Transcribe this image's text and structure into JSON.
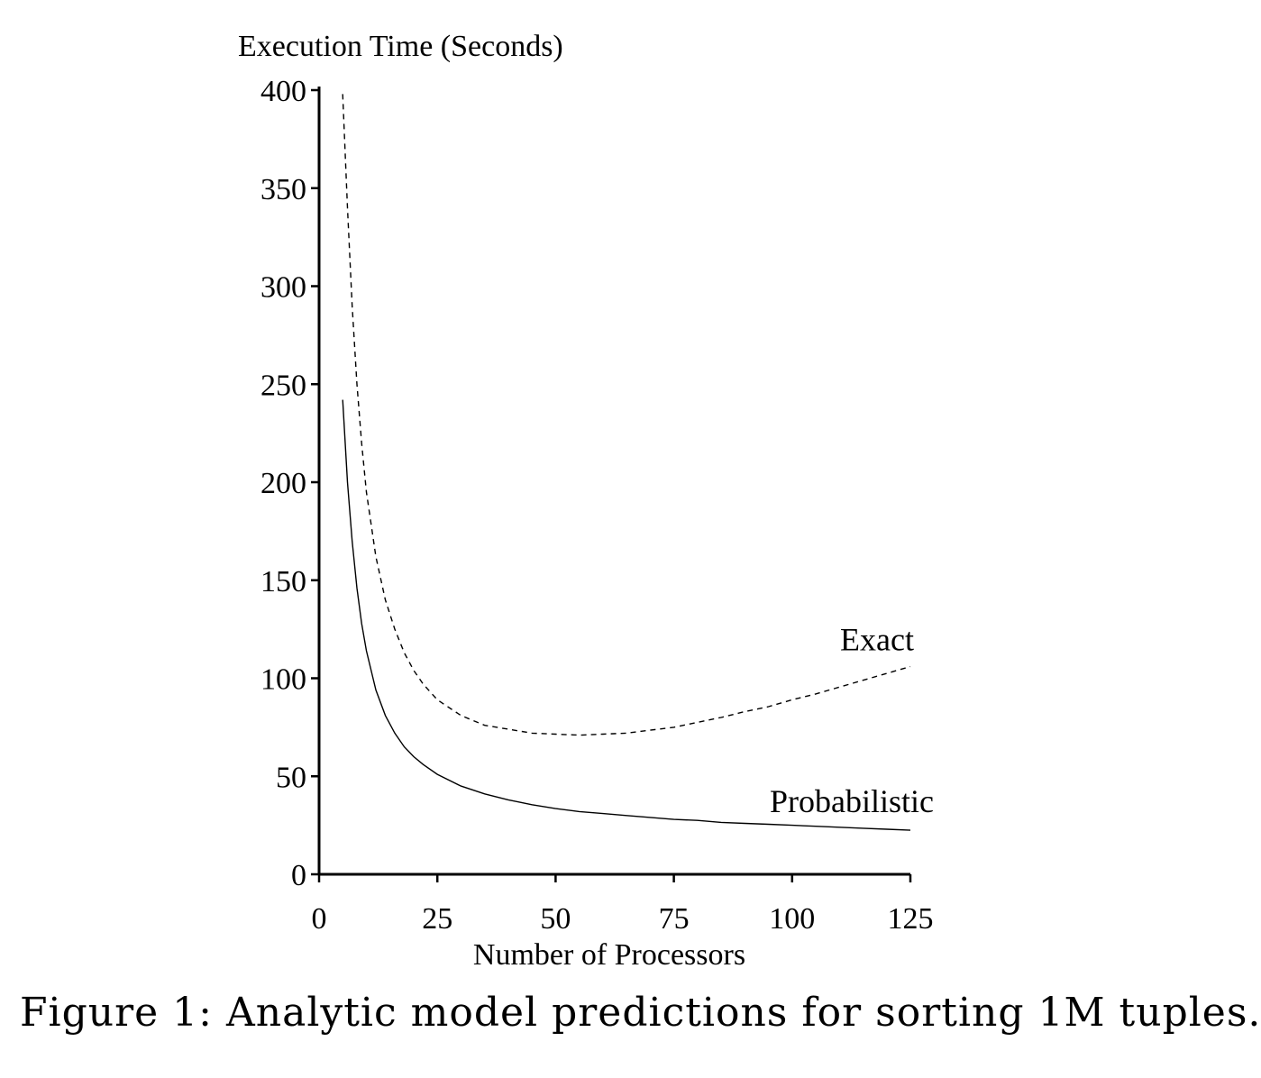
{
  "chart_data": {
    "type": "line",
    "title": "",
    "ylabel": "Execution Time (Seconds)",
    "xlabel": "Number of Processors",
    "xlim": [
      0,
      125
    ],
    "ylim": [
      0,
      400
    ],
    "xticks": [
      0,
      25,
      50,
      75,
      100,
      125
    ],
    "yticks": [
      0,
      50,
      100,
      150,
      200,
      250,
      300,
      350,
      400
    ],
    "grid": false,
    "legend": "none (series labeled inline at right end)",
    "series": [
      {
        "name": "Exact",
        "style": "dashed",
        "x": [
          5,
          6,
          7,
          8,
          9,
          10,
          12,
          14,
          16,
          18,
          20,
          22,
          25,
          30,
          35,
          40,
          45,
          50,
          55,
          60,
          65,
          70,
          75,
          80,
          85,
          90,
          95,
          100,
          105,
          110,
          115,
          120,
          125
        ],
        "y": [
          398,
          340,
          290,
          250,
          220,
          195,
          162,
          140,
          125,
          113,
          104,
          97,
          89,
          81,
          76,
          74,
          72,
          71.5,
          71,
          71.5,
          72,
          73.5,
          75,
          77.5,
          80,
          83,
          85.5,
          89,
          92,
          95.5,
          99,
          102.5,
          106
        ]
      },
      {
        "name": "Probabilistic",
        "style": "solid",
        "x": [
          5,
          6,
          7,
          8,
          9,
          10,
          12,
          14,
          16,
          18,
          20,
          22,
          25,
          30,
          35,
          40,
          45,
          50,
          55,
          60,
          65,
          70,
          75,
          80,
          85,
          90,
          95,
          100,
          105,
          110,
          115,
          120,
          125
        ],
        "y": [
          242,
          200,
          170,
          146,
          128,
          114,
          94,
          81,
          72,
          65,
          60,
          56,
          51,
          45,
          41,
          38,
          35.5,
          33.5,
          32,
          31,
          30,
          29,
          28,
          27.5,
          26.5,
          26,
          25.5,
          25,
          24.5,
          24,
          23.5,
          23,
          22.5
        ]
      }
    ]
  },
  "caption": "Figure 1: Analytic model predictions for sorting 1M tuples."
}
